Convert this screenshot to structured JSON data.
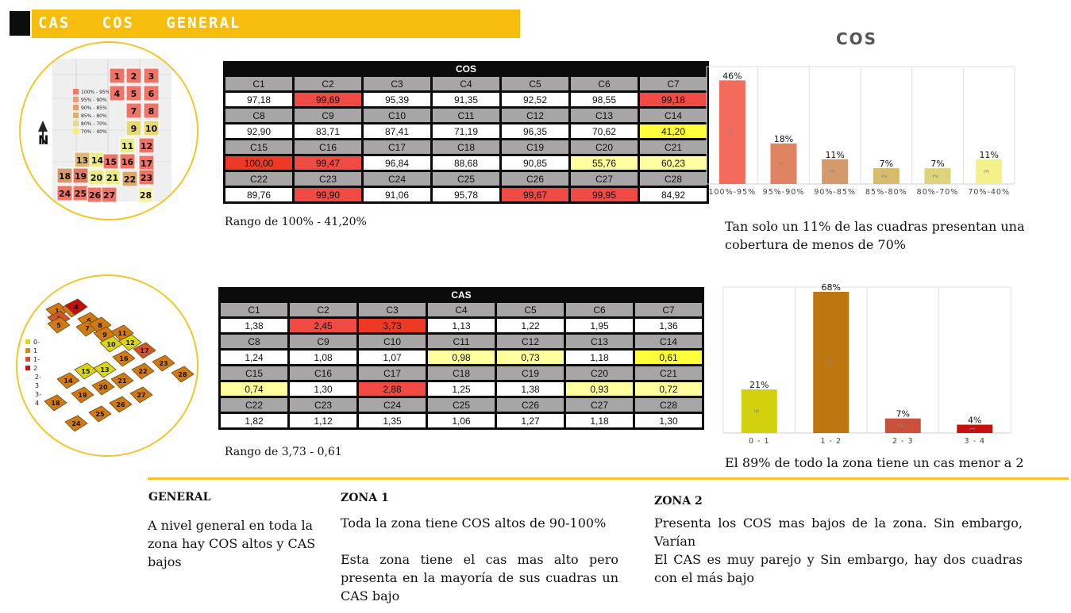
{
  "header": {
    "title": "CAS   COS   GENERAL"
  },
  "map_top": {
    "legend": [
      "100% - 95%",
      "95% - 90%",
      "90% - 85%",
      "85% - 80%",
      "80% - 70%",
      "70% - 40%"
    ],
    "legend_colors": [
      "#f07a6a",
      "#f09a7a",
      "#e0a070",
      "#d9b36a",
      "#e3d98a",
      "#f2ec8a"
    ],
    "north": "N",
    "blocks": [
      "1",
      "2",
      "3",
      "4",
      "5",
      "6",
      "7",
      "8",
      "9",
      "10",
      "11",
      "12",
      "13",
      "14",
      "15",
      "16",
      "17",
      "18",
      "19",
      "20",
      "21",
      "22",
      "23",
      "24",
      "25",
      "26",
      "27",
      "28"
    ]
  },
  "map_bottom": {
    "legend": [
      "0-",
      "1",
      "1-",
      "2",
      "2-",
      "3",
      "3-",
      "4"
    ],
    "legend_colors": [
      "#d6d61c",
      "#d6871a",
      "#d0542e",
      "#d01010"
    ],
    "blocks": [
      "1",
      "2",
      "3",
      "4",
      "5",
      "6",
      "7",
      "8",
      "9",
      "10",
      "11",
      "12",
      "13",
      "14",
      "15",
      "16",
      "17",
      "18",
      "19",
      "20",
      "21",
      "22",
      "23",
      "24",
      "25",
      "26",
      "27",
      "28"
    ]
  },
  "cos_table": {
    "title": "COS",
    "rows": [
      {
        "labels": [
          "C1",
          "C2",
          "C3",
          "C4",
          "C5",
          "C6",
          "C7"
        ],
        "values": [
          "97,18",
          "99,69",
          "95,39",
          "91,35",
          "92,52",
          "98,55",
          "99,18"
        ],
        "hl": [
          "",
          "red",
          "",
          "",
          "",
          "",
          "red"
        ]
      },
      {
        "labels": [
          "C8",
          "C9",
          "C10",
          "C11",
          "C12",
          "C13",
          "C14"
        ],
        "values": [
          "92,90",
          "83,71",
          "87,41",
          "71,19",
          "96,35",
          "70,62",
          "41,20"
        ],
        "hl": [
          "",
          "",
          "",
          "",
          "",
          "",
          "yel"
        ]
      },
      {
        "labels": [
          "C15",
          "C16",
          "C17",
          "C18",
          "C19",
          "C20",
          "C21"
        ],
        "values": [
          "100,00",
          "99,47",
          "96,84",
          "88,68",
          "90,85",
          "55,76",
          "60,23"
        ],
        "hl": [
          "rd2",
          "red",
          "",
          "",
          "",
          "pyl",
          "pyl"
        ]
      },
      {
        "labels": [
          "C22",
          "C23",
          "C24",
          "C25",
          "C26",
          "C27",
          "C28"
        ],
        "values": [
          "89,76",
          "99,90",
          "91,06",
          "95,78",
          "99,67",
          "99,95",
          "84,92"
        ],
        "hl": [
          "",
          "red",
          "",
          "",
          "red",
          "red",
          ""
        ]
      }
    ],
    "range": "Rango de  100% - 41,20%"
  },
  "cas_table": {
    "title": "CAS",
    "rows": [
      {
        "labels": [
          "C1",
          "C2",
          "C3",
          "C4",
          "C5",
          "C6",
          "C7"
        ],
        "values": [
          "1,38",
          "2,45",
          "3,73",
          "1,13",
          "1,22",
          "1,95",
          "1,36"
        ],
        "hl": [
          "",
          "red",
          "rd2",
          "",
          "",
          "",
          ""
        ]
      },
      {
        "labels": [
          "C8",
          "C9",
          "C10",
          "C11",
          "C12",
          "C13",
          "C14"
        ],
        "values": [
          "1,24",
          "1,08",
          "1,07",
          "0,98",
          "0,73",
          "1,18",
          "0,61"
        ],
        "hl": [
          "",
          "",
          "",
          "pyl",
          "pyl",
          "",
          "yel"
        ]
      },
      {
        "labels": [
          "C15",
          "C16",
          "C17",
          "C18",
          "C19",
          "C20",
          "C21"
        ],
        "values": [
          "0,74",
          "1,30",
          "2,88",
          "1,25",
          "1,38",
          "0,93",
          "0,72"
        ],
        "hl": [
          "pyl",
          "",
          "red",
          "",
          "",
          "pyl",
          "pyl"
        ]
      },
      {
        "labels": [
          "C22",
          "C23",
          "C24",
          "C25",
          "C26",
          "C27",
          "C28"
        ],
        "values": [
          "1,82",
          "1,12",
          "1,35",
          "1,06",
          "1,27",
          "1,18",
          "1,30"
        ],
        "hl": [
          "",
          "",
          "",
          "",
          "",
          "",
          ""
        ]
      }
    ],
    "range": "Rango de 3,73 - 0,61"
  },
  "chart_data": [
    {
      "type": "bar",
      "title": "COS",
      "categories": [
        "100%-95%",
        "95%-90%",
        "90%-85%",
        "85%-80%",
        "80%-70%",
        "70%-40%"
      ],
      "values": [
        46,
        18,
        11,
        7,
        7,
        11
      ],
      "counts": [
        "13",
        "5",
        "3",
        "2",
        "2",
        "3"
      ],
      "value_labels": [
        "46%",
        "18%",
        "11%",
        "7%",
        "7%",
        "11%"
      ],
      "colors": [
        "#f26b5b",
        "#e08362",
        "#d49a6a",
        "#d5bb6b",
        "#dcd37a",
        "#f4f08a"
      ],
      "ylim": [
        0,
        50
      ],
      "grid": true,
      "caption": "Tan solo un 11% de las cuadras presentan una cobertura de menos de 70%"
    },
    {
      "type": "bar",
      "title": "",
      "categories": [
        "0 - 1",
        "1 - 2",
        "2 - 3",
        "3 - 4"
      ],
      "values": [
        21,
        68,
        7,
        4
      ],
      "counts": [
        "6",
        "19",
        "2",
        "1"
      ],
      "value_labels": [
        "21%",
        "68%",
        "7%",
        "4%"
      ],
      "colors": [
        "#d3d10e",
        "#bd7610",
        "#c9503a",
        "#c81010"
      ],
      "ylim": [
        0,
        68
      ],
      "grid": true,
      "caption": "El 89% de todo la zona tiene un cas menor a 2"
    }
  ],
  "summary": {
    "general": {
      "heading": "GENERAL",
      "text": "A nivel general en toda la zona hay COS altos y CAS bajos"
    },
    "zona1": {
      "heading": "ZONA 1",
      "text1": "Toda la zona tiene COS altos de 90-100%",
      "text2": "Esta zona tiene el cas mas alto pero presenta en la mayoría de sus cuadras un CAS bajo"
    },
    "zona2": {
      "heading": "ZONA 2",
      "text1": "Presenta los COS mas bajos de la zona. Sin embargo, Varían",
      "text2": "El CAS es muy parejo y Sin embargo, hay dos cuadras con el más bajo"
    }
  }
}
